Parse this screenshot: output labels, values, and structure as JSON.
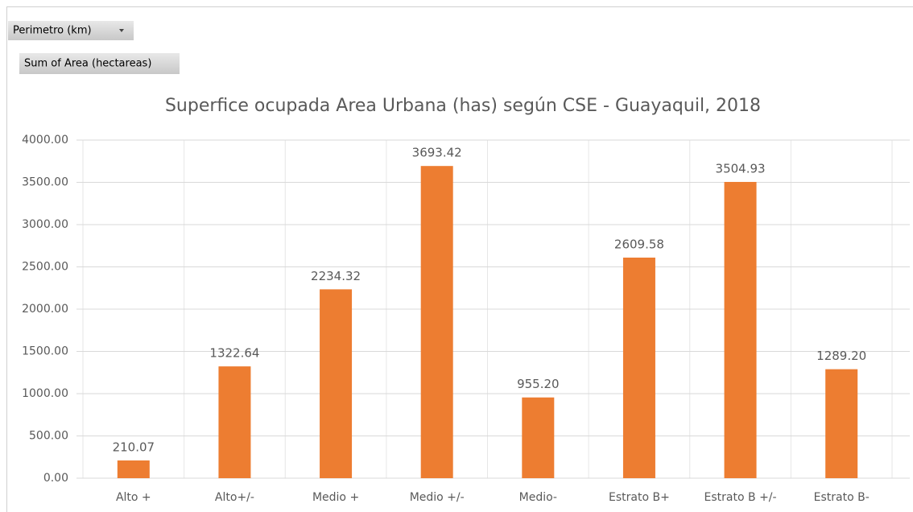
{
  "field_buttons": [
    "Perimetro (km)",
    "Sum of Area (hectareas)"
  ],
  "chart_data": {
    "type": "bar",
    "title": "Superfice ocupada Area Urbana (has) según CSE - Guayaquil, 2018",
    "categories": [
      "Alto +",
      "Alto+/-",
      "Medio +",
      "Medio +/-",
      "Medio-",
      "Estrato B+",
      "Estrato B +/-",
      "Estrato B-"
    ],
    "values": [
      210.07,
      1322.64,
      2234.32,
      3693.42,
      955.2,
      2609.58,
      3504.93,
      1289.2
    ],
    "value_labels": [
      "210.07",
      "1322.64",
      "2234.32",
      "3693.42",
      "955.20",
      "2609.58",
      "3504.93",
      "1289.20"
    ],
    "color": "#ed7d31",
    "ylim": [
      0,
      4000
    ],
    "yticks": [
      {
        "value": 0,
        "label": "0.00"
      },
      {
        "value": 500,
        "label": "500.00"
      },
      {
        "value": 1000,
        "label": "1000.00"
      },
      {
        "value": 1500,
        "label": "1500.00"
      },
      {
        "value": 2000,
        "label": "2000.00"
      },
      {
        "value": 2500,
        "label": "2500.00"
      },
      {
        "value": 3000,
        "label": "3000.00"
      },
      {
        "value": 3500,
        "label": "3500.00"
      },
      {
        "value": 4000,
        "label": "4000.00"
      }
    ],
    "grid": true
  }
}
